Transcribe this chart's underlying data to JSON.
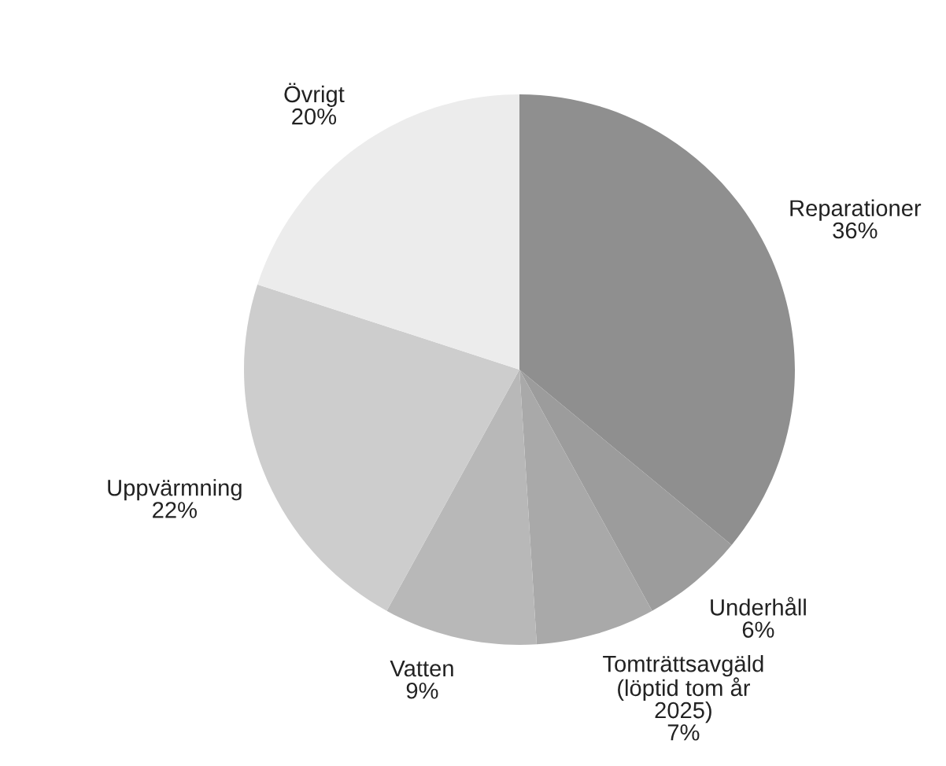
{
  "chart_data": {
    "type": "pie",
    "categories": [
      "Reparationer",
      "Underhåll",
      "Tomträttsavgäld\n(löptid tom år\n2025)",
      "Vatten",
      "Uppvärmning",
      "Övrigt"
    ],
    "values": [
      36,
      6,
      7,
      9,
      22,
      20
    ],
    "value_labels": [
      "36%",
      "6%",
      "7%",
      "9%",
      "22%",
      "20%"
    ],
    "colors": [
      "#8f8f8f",
      "#9c9c9c",
      "#a9a9a9",
      "#b8b8b8",
      "#cdcdcd",
      "#ececec"
    ]
  }
}
